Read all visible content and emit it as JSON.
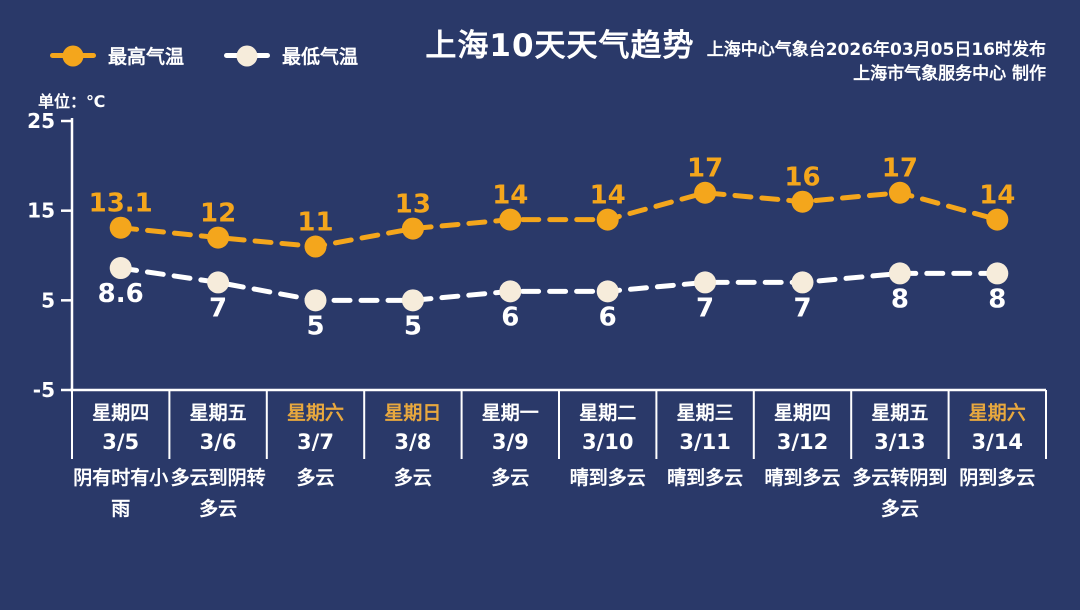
{
  "page": {
    "background": "#2A3969"
  },
  "header": {
    "title": "上海10天天气趋势",
    "credit_line1": "上海中心气象台2026年03月05日16时发布",
    "credit_line2": "上海市气象服务中心  制作"
  },
  "legend": {
    "items": [
      {
        "label": "最高气温",
        "line_color": "#F4A61C",
        "marker_color": "#F4A61C"
      },
      {
        "label": "最低气温",
        "line_color": "#FFFFFF",
        "marker_color": "#F6ECDB"
      }
    ]
  },
  "axis": {
    "unit_label": "单位：℃",
    "yticks": [
      25,
      15,
      5,
      -5
    ]
  },
  "chart_data": {
    "type": "line",
    "title": "上海10天天气趋势",
    "ylabel": "℃",
    "ylim": [
      -5,
      25
    ],
    "yticks": [
      25,
      15,
      5,
      -5
    ],
    "grid": false,
    "line_style": "dashed",
    "legend_position": "top-left",
    "categories": [
      "3/5",
      "3/6",
      "3/7",
      "3/8",
      "3/9",
      "3/10",
      "3/11",
      "3/12",
      "3/13",
      "3/14"
    ],
    "series": [
      {
        "name": "最高气温",
        "values": [
          13.1,
          12,
          11,
          13,
          14,
          14,
          17,
          16,
          17,
          14
        ],
        "color": "#F4A61C",
        "marker_fill": "#F4A61C",
        "label_position": "above"
      },
      {
        "name": "最低气温",
        "values": [
          8.6,
          7,
          5,
          5,
          6,
          6,
          7,
          7,
          8,
          8
        ],
        "color": "#FFFFFF",
        "marker_fill": "#F6ECDB",
        "label_position": "below"
      }
    ]
  },
  "days": [
    {
      "day": "星期四",
      "date": "3/5",
      "weather": "阴有时有小雨",
      "weekend": false
    },
    {
      "day": "星期五",
      "date": "3/6",
      "weather": "多云到阴转多云",
      "weekend": false
    },
    {
      "day": "星期六",
      "date": "3/7",
      "weather": "多云",
      "weekend": true
    },
    {
      "day": "星期日",
      "date": "3/8",
      "weather": "多云",
      "weekend": true
    },
    {
      "day": "星期一",
      "date": "3/9",
      "weather": "多云",
      "weekend": false
    },
    {
      "day": "星期二",
      "date": "3/10",
      "weather": "晴到多云",
      "weekend": false
    },
    {
      "day": "星期三",
      "date": "3/11",
      "weather": "晴到多云",
      "weekend": false
    },
    {
      "day": "星期四",
      "date": "3/12",
      "weather": "晴到多云",
      "weekend": false
    },
    {
      "day": "星期五",
      "date": "3/13",
      "weather": "多云转阴到多云",
      "weekend": false
    },
    {
      "day": "星期六",
      "date": "3/14",
      "weather": "阴到多云",
      "weekend": true
    }
  ],
  "colors": {
    "background": "#2A3969",
    "accent_orange": "#F4A61C",
    "low_marker": "#F6ECDB",
    "weekend_day": "#E8A83E",
    "axis": "#FFFFFF"
  }
}
